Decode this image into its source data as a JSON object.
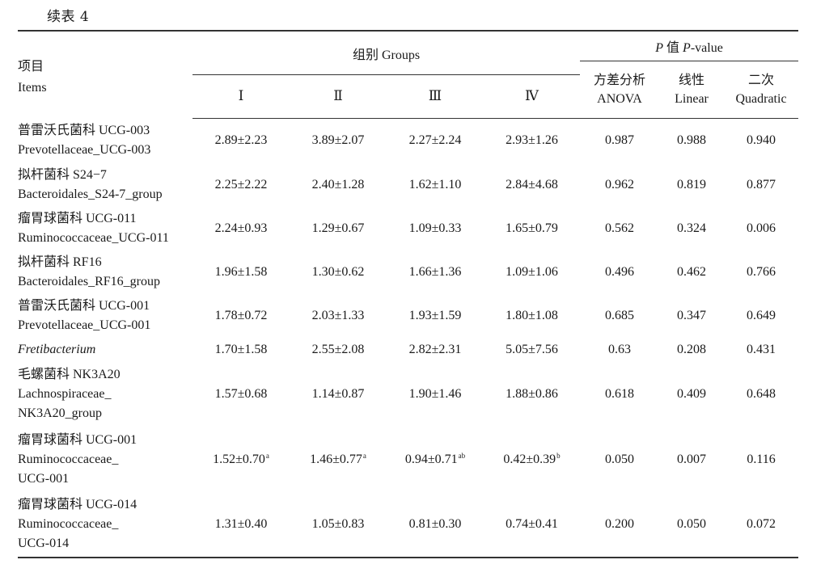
{
  "caption": "续表 4",
  "header": {
    "items_cn": "项目",
    "items_en": "Items",
    "groups": "组别 Groups",
    "pvalue_p": "P",
    "pvalue_cn": "值",
    "pvalue_p2": "P",
    "pvalue_en": "-value",
    "group_labels": [
      "Ⅰ",
      "Ⅱ",
      "Ⅲ",
      "Ⅳ"
    ],
    "anova_cn": "方差分析",
    "anova_en": "ANOVA",
    "linear_cn": "线性",
    "linear_en": "Linear",
    "quad_cn": "二次",
    "quad_en": "Quadratic"
  },
  "rows": [
    {
      "lines": [
        "普雷沃氏菌科 UCG-003",
        "Prevotellaceae_UCG-003"
      ],
      "g1": "2.89±2.23",
      "g2": "3.89±2.07",
      "g3": "2.27±2.24",
      "g4": "2.93±1.26",
      "anova": "0.987",
      "linear": "0.988",
      "quad": "0.940",
      "h": 55
    },
    {
      "lines": [
        "拟杆菌科 S24−7",
        "Bacteroidales_S24-7_group"
      ],
      "g1": "2.25±2.22",
      "g2": "2.40±1.28",
      "g3": "1.62±1.10",
      "g4": "2.84±4.68",
      "anova": "0.962",
      "linear": "0.819",
      "quad": "0.877",
      "h": 54
    },
    {
      "lines": [
        "瘤胃球菌科 UCG-011",
        "Ruminococcaceae_UCG-011"
      ],
      "g1": "2.24±0.93",
      "g2": "1.29±0.67",
      "g3": "1.09±0.33",
      "g4": "1.65±0.79",
      "anova": "0.562",
      "linear": "0.324",
      "quad": "0.006",
      "h": 54
    },
    {
      "lines": [
        "拟杆菌科 RF16",
        "Bacteroidales_RF16_group"
      ],
      "g1": "1.96±1.58",
      "g2": "1.30±0.62",
      "g3": "1.66±1.36",
      "g4": "1.09±1.06",
      "anova": "0.496",
      "linear": "0.462",
      "quad": "0.766",
      "h": 54
    },
    {
      "lines": [
        "普雷沃氏菌科 UCG-001",
        "Prevotellaceae_UCG-001"
      ],
      "g1": "1.78±0.72",
      "g2": "2.03±1.33",
      "g3": "1.93±1.59",
      "g4": "1.80±1.08",
      "anova": "0.685",
      "linear": "0.347",
      "quad": "0.649",
      "h": 54
    },
    {
      "lines": [
        "Fretibacterium"
      ],
      "italic": true,
      "g1": "1.70±1.58",
      "g2": "2.55±2.08",
      "g3": "2.82±2.31",
      "g4": "5.05±7.56",
      "anova": "0.63",
      "linear": "0.208",
      "quad": "0.431",
      "h": 30
    },
    {
      "lines": [
        "毛螺菌科 NK3A20",
        "Lachnospiraceae_",
        "NK3A20_group"
      ],
      "g1": "1.57±0.68",
      "g2": "1.14±0.87",
      "g3": "1.90±1.46",
      "g4": "1.88±0.86",
      "anova": "0.618",
      "linear": "0.409",
      "quad": "0.648",
      "h": 80
    },
    {
      "lines": [
        "瘤胃球菌科 UCG-001",
        "Ruminococcaceae_",
        "UCG-001"
      ],
      "g1": "1.52±0.70",
      "g1s": "a",
      "g2": "1.46±0.77",
      "g2s": "a",
      "g3": "0.94±0.71",
      "g3s": "ab",
      "g4": "0.42±0.39",
      "g4s": "b",
      "anova": "0.050",
      "linear": "0.007",
      "quad": "0.116",
      "h": 82
    },
    {
      "lines": [
        "瘤胃球菌科 UCG-014",
        "Ruminococcaceae_",
        "UCG-014"
      ],
      "g1": "1.31±0.40",
      "g2": "1.05±0.83",
      "g3": "0.81±0.30",
      "g4": "0.74±0.41",
      "anova": "0.200",
      "linear": "0.050",
      "quad": "0.072",
      "h": 80
    }
  ]
}
